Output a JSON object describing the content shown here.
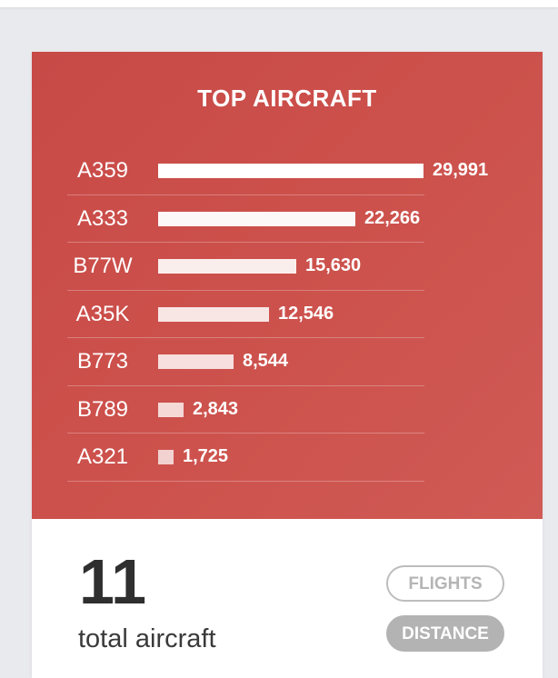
{
  "card": {
    "title": "TOP AIRCRAFT",
    "total_value": "11",
    "total_caption": "total aircraft",
    "buttons": {
      "flights": "FLIGHTS",
      "distance": "DISTANCE"
    },
    "accent_color": "#cc4e4a"
  },
  "chart_data": {
    "type": "bar",
    "orientation": "horizontal",
    "title": "TOP AIRCRAFT",
    "categories": [
      "A359",
      "A333",
      "B77W",
      "A35K",
      "B773",
      "B789",
      "A321"
    ],
    "values": [
      29991,
      22266,
      15630,
      12546,
      8544,
      2843,
      1725
    ],
    "value_labels": [
      "29,991",
      "22,266",
      "15,630",
      "12,546",
      "8,544",
      "2,843",
      "1,725"
    ],
    "opacities": [
      1.0,
      0.96,
      0.9,
      0.86,
      0.82,
      0.78,
      0.74
    ],
    "xlabel": "",
    "ylabel": "",
    "grid": false
  }
}
